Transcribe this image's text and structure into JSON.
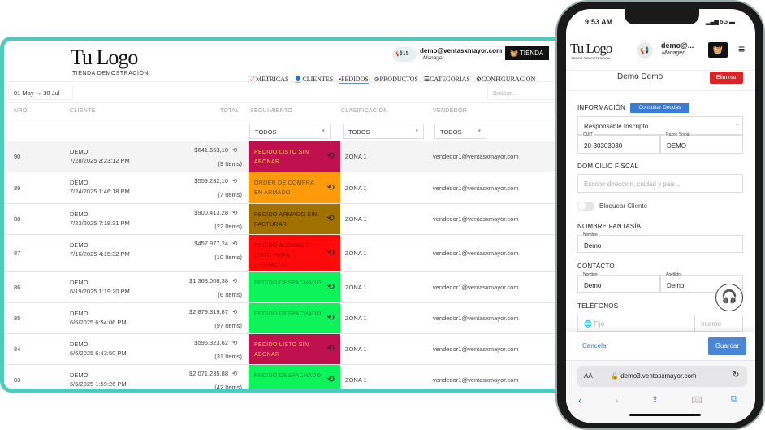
{
  "desktop": {
    "logo": "Tu Logo",
    "logo_sub": "TIENDA DEMOSTRACIÓN",
    "notif_count": "15",
    "user_email": "demo@ventasxmayor.com",
    "user_role": "Manager",
    "store_button": "TIENDA",
    "nav": [
      {
        "label": "MÉTRICAS"
      },
      {
        "label": "CLIENTES"
      },
      {
        "label": "PEDIDOS",
        "active": true
      },
      {
        "label": "PRODUCTOS"
      },
      {
        "label": "CATEGORÍAS"
      },
      {
        "label": "CONFIGURACIÓN"
      }
    ],
    "date_range": "01 May → 30 Jul",
    "search_placeholder": "Buscar...",
    "columns": [
      "NRO",
      "CLIENTE",
      "TOTAL",
      "SEGUIMIENTO",
      "CLASIFICACIÓN",
      "VENDEDOR"
    ],
    "filters": [
      "TODOS",
      "TODOS",
      "TODOS"
    ],
    "rows": [
      {
        "nro": "90",
        "client": "DEMO",
        "date": "7/28/2025 3:23:12 PM",
        "total": "$641.663,10",
        "items": "(9 Items)",
        "status": "PEDIDO LISTO SIN ABONAR",
        "status_color": "#c0114f",
        "text_color": "#f3c34a",
        "zone": "ZONA 1",
        "seller": "vendedor1@ventasxmayor.com"
      },
      {
        "nro": "89",
        "client": "DEMO",
        "date": "7/24/2025 1:46:18 PM",
        "total": "$559.232,10",
        "items": "(7 Items)",
        "status": "ORDEN DE COMPRA EN ARMADO",
        "status_color": "#ff9a0a",
        "text_color": "#6b4a00",
        "zone": "ZONA 1",
        "seller": "vendedor1@ventasxmayor.com"
      },
      {
        "nro": "88",
        "client": "DEMO",
        "date": "7/23/2025 7:18:31 PM",
        "total": "$900.413,28",
        "items": "(22 Items)",
        "status": "PEDIDO ARMADO SIN FACTURAR",
        "status_color": "#a07000",
        "text_color": "#2a2000",
        "zone": "ZONA 1",
        "seller": "vendedor1@ventasxmayor.com"
      },
      {
        "nro": "87",
        "client": "DEMO",
        "date": "7/16/2025 4:15:32 PM",
        "total": "$457.977,24",
        "items": "(10 Items)",
        "status": "PEDIDO ABONADO LISTO PARA DESPACHO",
        "status_color": "#ff0a0a",
        "text_color": "#a00000",
        "zone": "ZONA 1",
        "seller": "vendedor1@ventasxmayor.com"
      },
      {
        "nro": "86",
        "client": "DEMO",
        "date": "6/19/2025 1:19:20 PM",
        "total": "$1.363.008,38",
        "items": "(6 Items)",
        "status": "PEDIDO DESPACHADO",
        "status_color": "#0cf45a",
        "text_color": "#0a8a30",
        "zone": "ZONA 1",
        "seller": "vendedor1@ventasxmayor.com"
      },
      {
        "nro": "85",
        "client": "DEMO",
        "date": "6/6/2025 6:54:06 PM",
        "total": "$2.879.319,87",
        "items": "(97 Items)",
        "status": "PEDIDO DESPACHADO",
        "status_color": "#0cf45a",
        "text_color": "#0a8a30",
        "zone": "ZONA 1",
        "seller": "vendedor1@ventasxmayor.com"
      },
      {
        "nro": "84",
        "client": "DEMO",
        "date": "6/6/2025 6:43:50 PM",
        "total": "$596.323,62",
        "items": "(31 Items)",
        "status": "PEDIDO LISTO SIN ABONAR",
        "status_color": "#c0114f",
        "text_color": "#f3c34a",
        "zone": "ZONA 1",
        "seller": "vendedor1@ventasxmayor.com"
      },
      {
        "nro": "83",
        "client": "DEMO",
        "date": "6/6/2025 1:59:26 PM",
        "total": "$2.071.235,88",
        "items": "(42 Items)",
        "status": "PEDIDO DESPACHADO",
        "status_color": "#0cf45a",
        "text_color": "#0a8a30",
        "zone": "ZONA 1",
        "seller": "vendedor1@ventasxmayor.com"
      }
    ]
  },
  "phone": {
    "time": "9:53 AM",
    "network": "5G",
    "logo": "Tu Logo",
    "logo_sub": "TIENDA DEMOSTRACIÓN",
    "user": "demo@...",
    "role": "Manager",
    "title": "Demo Demo",
    "delete_button": "Eliminar",
    "info_label": "INFORMACIÓN",
    "debts_button": "Consultar Deudas",
    "tax_condition": "Responsable Inscripto",
    "cuit_label": "CUIT",
    "cuit": "20-30303030",
    "razon_label": "Razon Social",
    "razon": "DEMO",
    "address_label": "DOMICILIO FISCAL",
    "address_placeholder": "Escribir direccion, cuidad y pais...",
    "block_label": "Bloquear Cliente",
    "block_on": false,
    "fantasy_label": "NOMBRE FANTASÍA",
    "fantasy_name_label": "Nombre",
    "fantasy_name": "Demo",
    "contact_label": "CONTACTO",
    "first_label": "Nombre",
    "first": "Demo",
    "last_label": "Apellido",
    "last": "Demo",
    "phones_label": "TELÉFONOS",
    "phone_placeholder": "Fijo",
    "ext_placeholder": "Interno",
    "cancel": "Cancelar",
    "save": "Guardar",
    "aa": "AA",
    "url": "demo3.ventasxmayor.com"
  }
}
